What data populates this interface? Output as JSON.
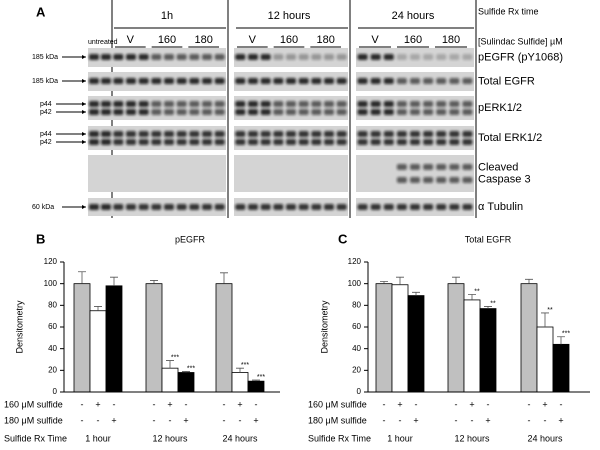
{
  "panel_a": {
    "letter": "A",
    "untreated": "untreated",
    "time_label": "Sulfide Rx time",
    "dose_label": "[Sulindac Sulfide] µM",
    "times": [
      "1h",
      "12 hours",
      "24 hours"
    ],
    "doses": [
      "V",
      "160",
      "180"
    ],
    "rows": [
      {
        "name": [
          "pEGFR (pY1068)"
        ],
        "markers": [
          "185 kDa"
        ]
      },
      {
        "name": [
          "Total EGFR"
        ],
        "markers": [
          "185 kDa"
        ]
      },
      {
        "name": [
          "pERK1/2"
        ],
        "markers": [
          "p44",
          "p42"
        ]
      },
      {
        "name": [
          "Total ERK1/2"
        ],
        "markers": [
          "p44",
          "p42"
        ]
      },
      {
        "name": [
          "Cleaved",
          "Caspase 3"
        ],
        "markers": []
      },
      {
        "name": [
          "α Tubulin"
        ],
        "markers": [
          "60 kDa"
        ]
      }
    ]
  },
  "chart_data": [
    {
      "type": "bar",
      "panel": "B",
      "title": "pEGFR",
      "ylabel": "Densitometry",
      "categories": [
        "1 hour",
        "12 hours",
        "24 hours"
      ],
      "series": [
        {
          "color": "#c0c0c0",
          "values": [
            100,
            100,
            100
          ],
          "errors": [
            11,
            3,
            10
          ],
          "stars": [
            null,
            null,
            null
          ]
        },
        {
          "color": "#ffffff",
          "values": [
            75,
            22,
            18
          ],
          "errors": [
            4,
            7,
            4
          ],
          "stars": [
            null,
            "***",
            "***"
          ]
        },
        {
          "color": "#000000",
          "values": [
            98,
            18,
            10
          ],
          "errors": [
            8,
            1,
            1
          ],
          "stars": [
            null,
            "***",
            "***"
          ]
        }
      ],
      "rows": [
        {
          "label": "160 μM sulfide",
          "signs": [
            [
              "-",
              "+",
              "-"
            ],
            [
              "-",
              "+",
              "-"
            ],
            [
              "-",
              "+",
              "-"
            ]
          ]
        },
        {
          "label": "180 μM sulfide",
          "signs": [
            [
              "-",
              "-",
              "+"
            ],
            [
              "-",
              "-",
              "+"
            ],
            [
              "-",
              "-",
              "+"
            ]
          ]
        }
      ],
      "category_label": "Sulfide Rx Time",
      "ylim": [
        0,
        120
      ],
      "yticks": [
        0,
        20,
        40,
        60,
        80,
        100,
        120
      ]
    },
    {
      "type": "bar",
      "panel": "C",
      "title": "Total EGFR",
      "ylabel": "Densitometry",
      "categories": [
        "1 hour",
        "12 hours",
        "24 hours"
      ],
      "series": [
        {
          "color": "#c0c0c0",
          "values": [
            100,
            100,
            100
          ],
          "errors": [
            2,
            6,
            4
          ],
          "stars": [
            null,
            null,
            null
          ]
        },
        {
          "color": "#ffffff",
          "values": [
            99,
            85,
            60
          ],
          "errors": [
            7,
            5,
            13
          ],
          "stars": [
            null,
            "**",
            "**"
          ]
        },
        {
          "color": "#000000",
          "values": [
            89,
            77,
            44
          ],
          "errors": [
            3,
            2,
            7
          ],
          "stars": [
            null,
            "**",
            "***"
          ]
        }
      ],
      "rows": [
        {
          "label": "160 μM sulfide",
          "signs": [
            [
              "-",
              "+",
              "-"
            ],
            [
              "-",
              "+",
              "-"
            ],
            [
              "-",
              "+",
              "-"
            ]
          ]
        },
        {
          "label": "180 μM sulfide",
          "signs": [
            [
              "-",
              "-",
              "+"
            ],
            [
              "-",
              "-",
              "+"
            ],
            [
              "-",
              "-",
              "+"
            ]
          ]
        }
      ],
      "category_label": "Sulfide Rx Time",
      "ylim": [
        0,
        120
      ],
      "yticks": [
        0,
        20,
        40,
        60,
        80,
        100,
        120
      ]
    }
  ]
}
